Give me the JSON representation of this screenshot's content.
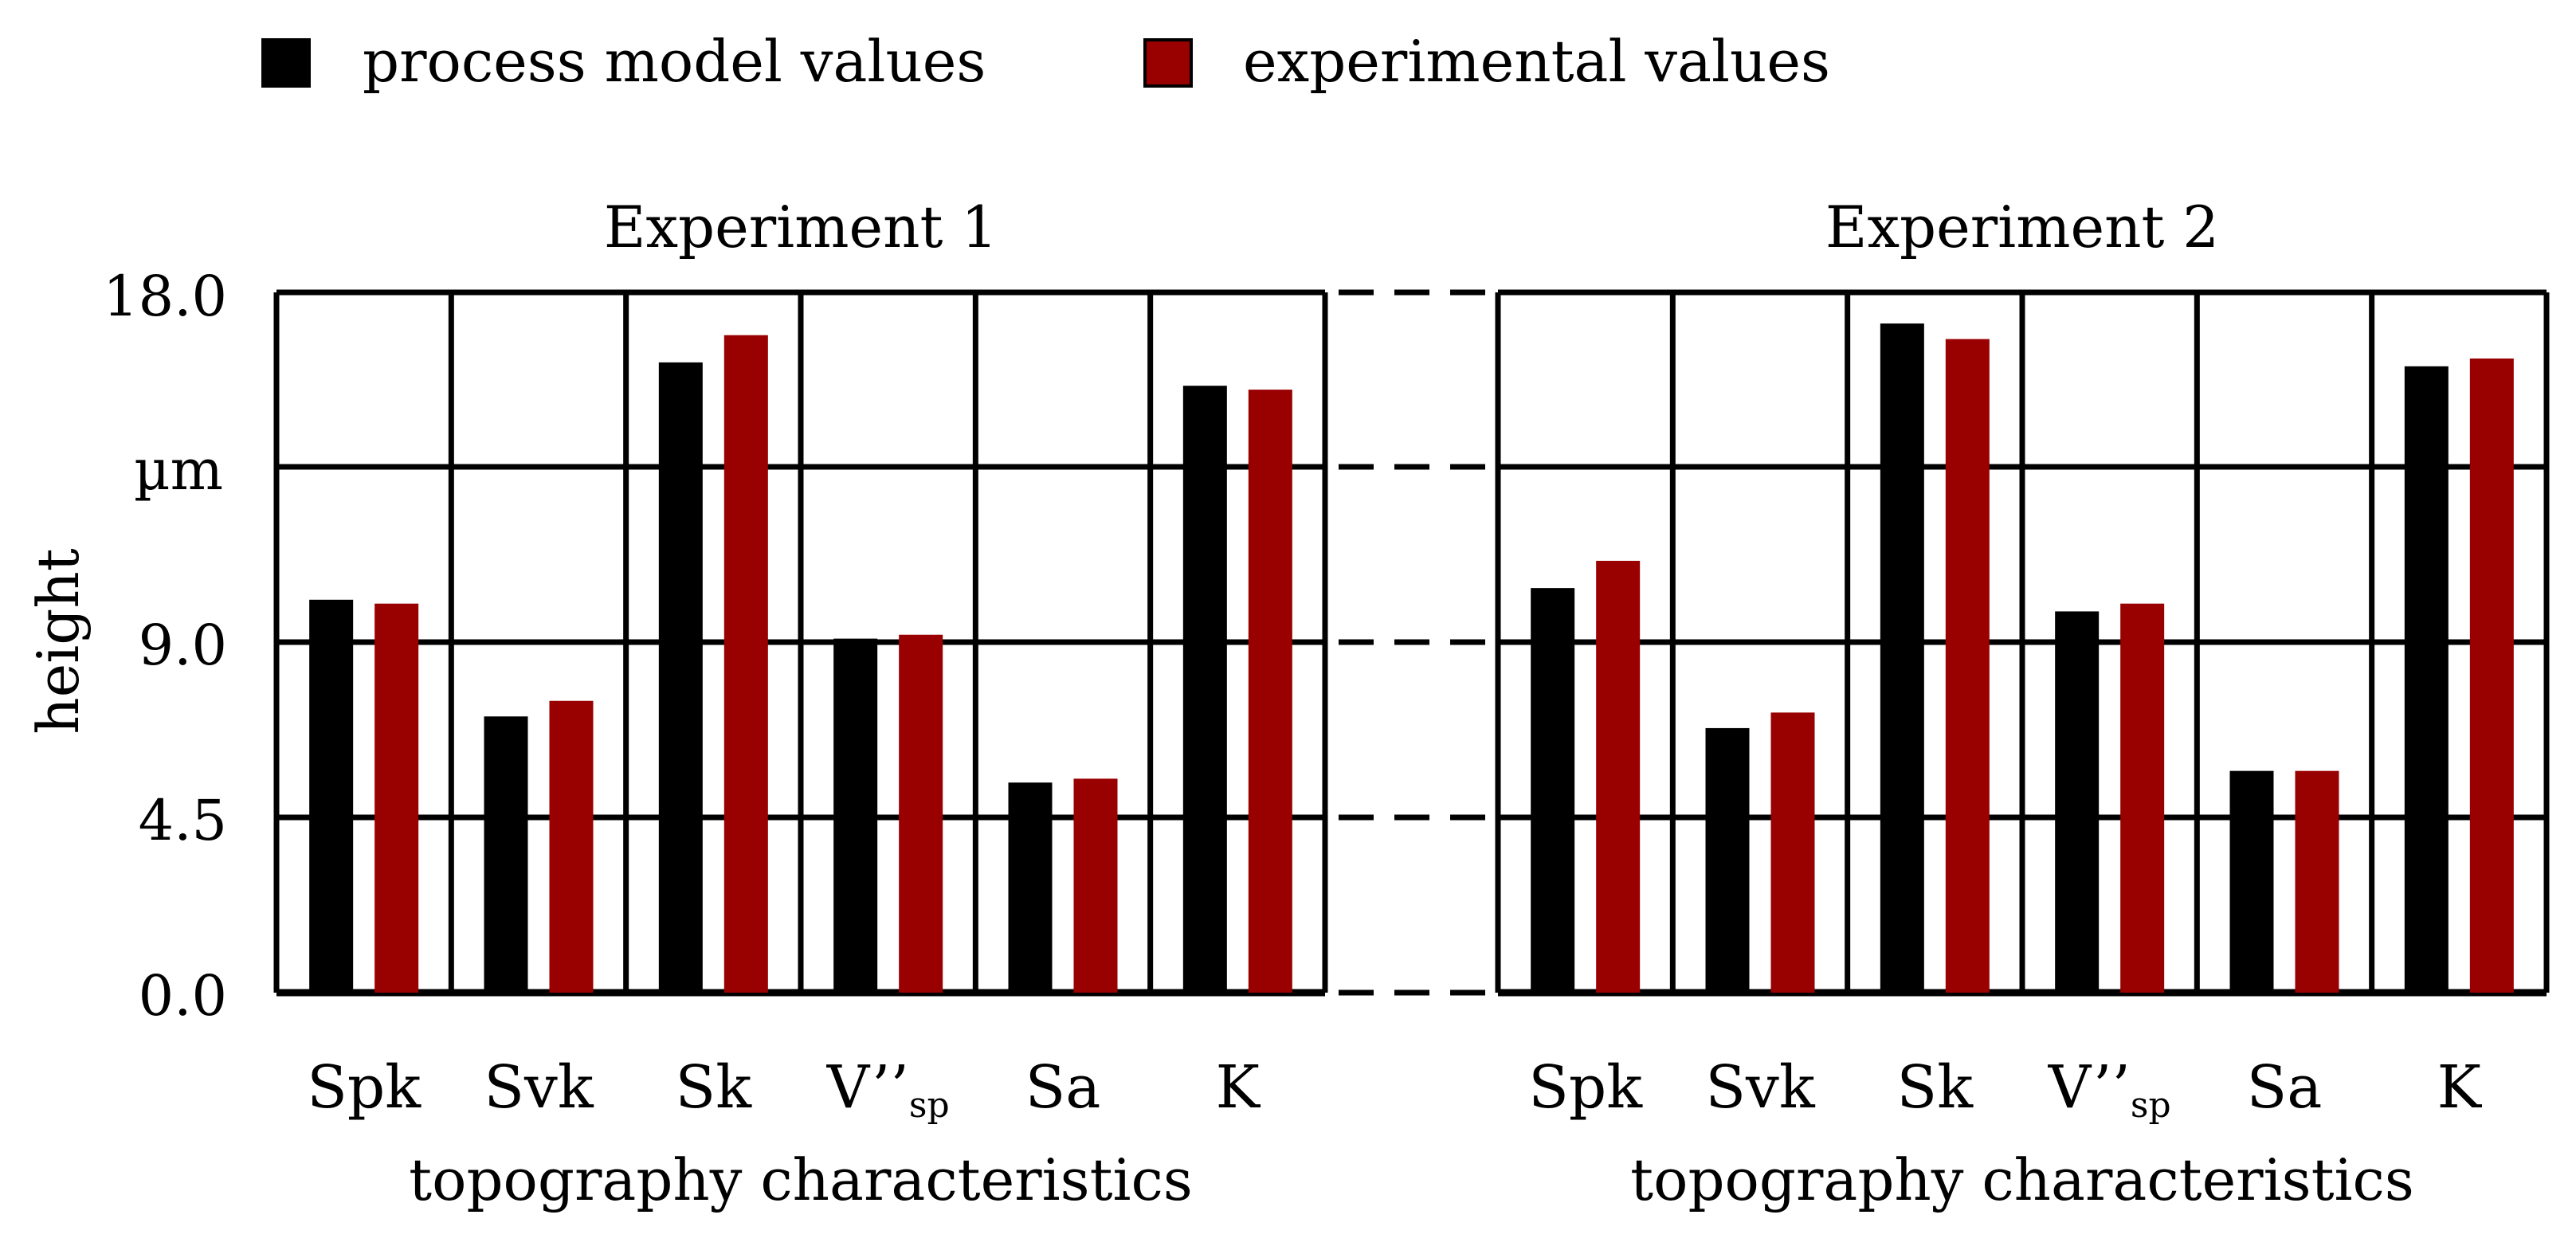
{
  "legend": {
    "items": [
      {
        "label": "process model values",
        "color": "#000000"
      },
      {
        "label": "experimental values",
        "color": "#990000"
      }
    ]
  },
  "axis": {
    "ylabel": "height",
    "unit_label": "µm",
    "y_tick_labels": [
      "0.0",
      "4.5",
      "9.0",
      "18.0"
    ]
  },
  "chart_data": [
    {
      "type": "bar",
      "title": "Experiment 1",
      "xlabel": "topography characteristics",
      "ylabel": "height",
      "ylim": [
        0,
        18
      ],
      "categories": [
        "Spk",
        "Svk",
        "Sk",
        "V''sp",
        "Sa",
        "K"
      ],
      "series": [
        {
          "name": "process model values",
          "color": "#000000",
          "values": [
            10.1,
            7.1,
            16.2,
            9.1,
            5.4,
            15.6
          ]
        },
        {
          "name": "experimental values",
          "color": "#990000",
          "values": [
            10.0,
            7.5,
            16.9,
            9.2,
            5.5,
            15.5
          ]
        }
      ]
    },
    {
      "type": "bar",
      "title": "Experiment 2",
      "xlabel": "topography characteristics",
      "ylabel": "height",
      "ylim": [
        0,
        18
      ],
      "categories": [
        "Spk",
        "Svk",
        "Sk",
        "V''sp",
        "Sa",
        "K"
      ],
      "series": [
        {
          "name": "process model values",
          "color": "#000000",
          "values": [
            10.4,
            6.8,
            17.2,
            9.8,
            5.7,
            16.1
          ]
        },
        {
          "name": "experimental values",
          "color": "#990000",
          "values": [
            11.1,
            7.2,
            16.8,
            10.0,
            5.7,
            16.3
          ]
        }
      ]
    }
  ]
}
